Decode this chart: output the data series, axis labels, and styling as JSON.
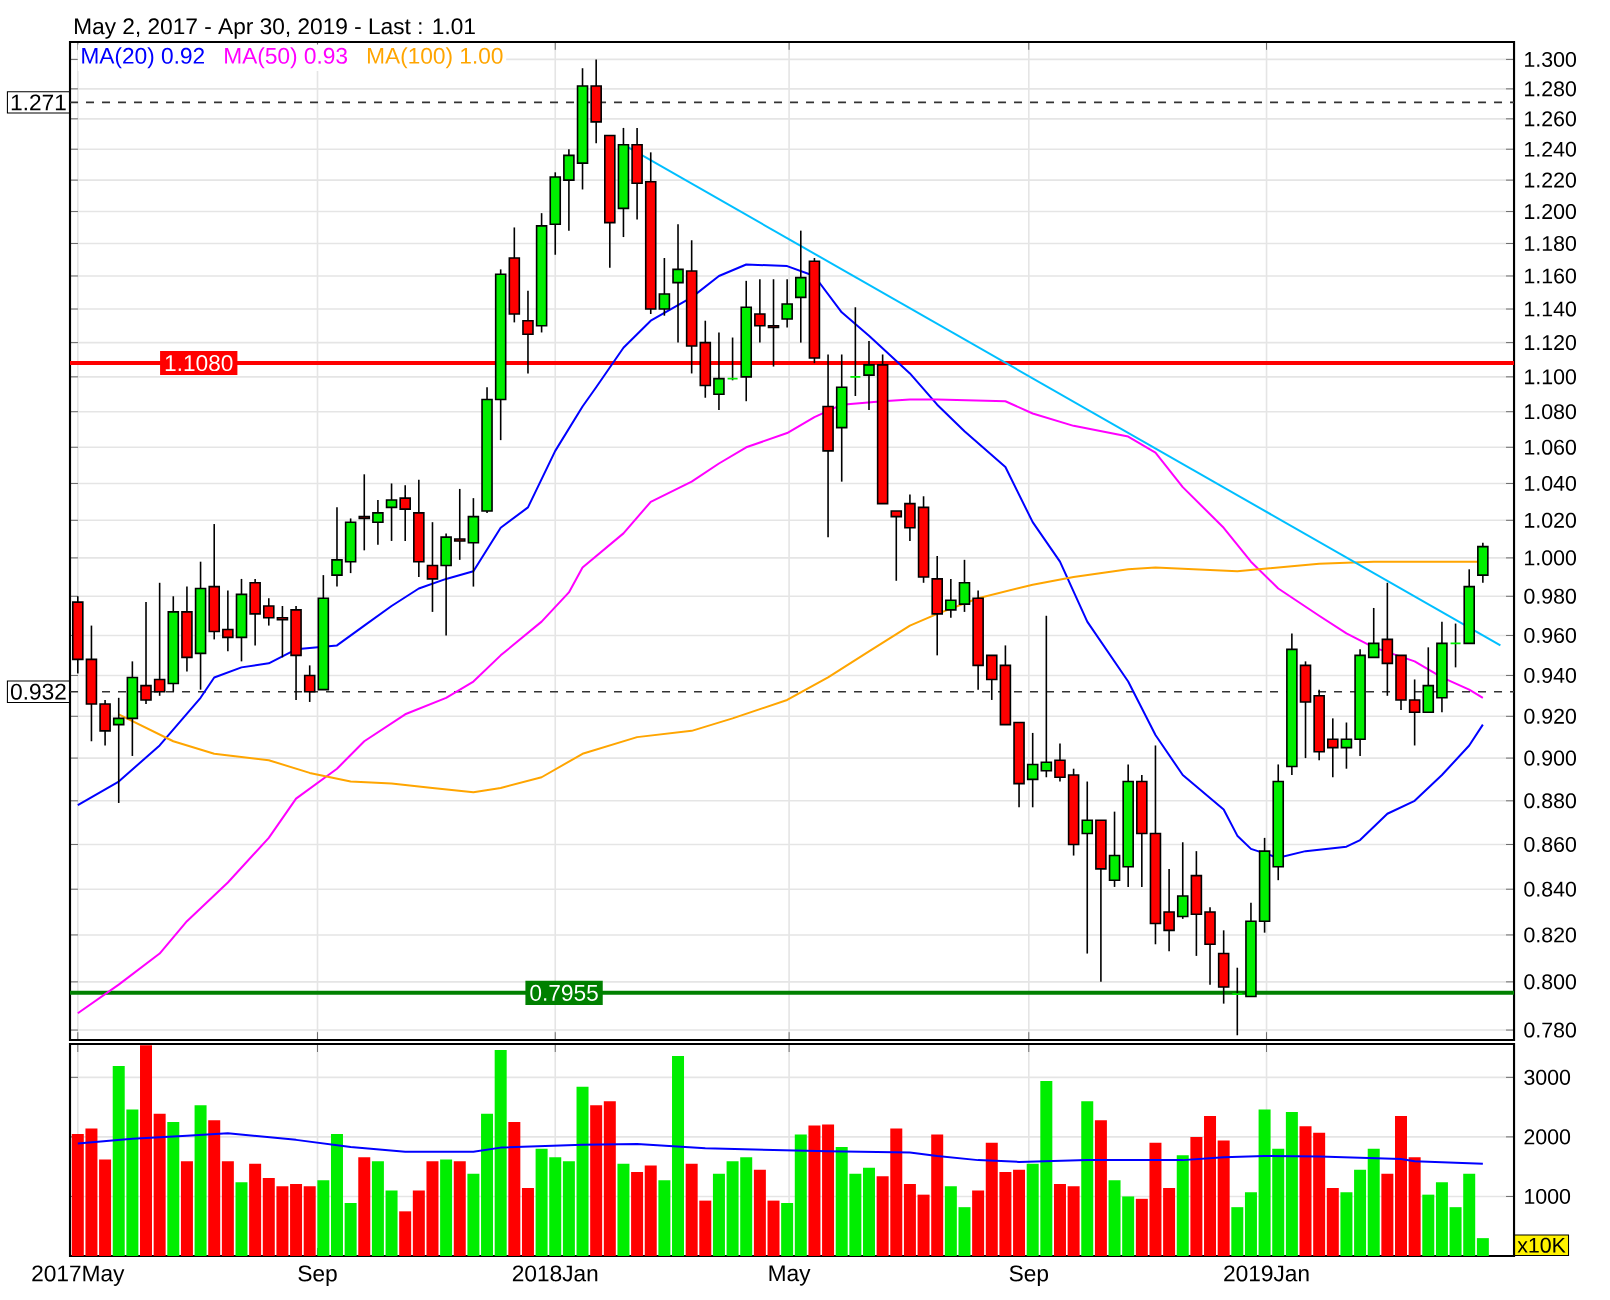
{
  "chart_data": [
    {
      "type": "candlestick",
      "title": "May 2, 2017 - Apr 30, 2019 - Last : 1.01",
      "log": true,
      "grid": true,
      "legend": "top left",
      "tick_labels": "y",
      "xlim": [
        "2017-04-27",
        "2019-05-08"
      ],
      "xticks": [
        {
          "value": "2017-05-01",
          "label": null
        },
        {
          "value": "2017-09-01",
          "label": null
        },
        {
          "value": "2018-01-01",
          "label": null
        },
        {
          "value": "2018-05-01",
          "label": null
        },
        {
          "value": "2018-09-01",
          "label": null
        },
        {
          "value": "2019-01-01",
          "label": null
        }
      ],
      "ylim": [
        0.776,
        1.312
      ],
      "yticks": [
        {
          "value": 0.78,
          "label": "0.780"
        },
        {
          "value": 0.8,
          "label": "0.800"
        },
        {
          "value": 0.82,
          "label": "0.820"
        },
        {
          "value": 0.84,
          "label": "0.840"
        },
        {
          "value": 0.86,
          "label": "0.860"
        },
        {
          "value": 0.88,
          "label": "0.880"
        },
        {
          "value": 0.9,
          "label": "0.900"
        },
        {
          "value": 0.92,
          "label": "0.920"
        },
        {
          "value": 0.94,
          "label": "0.940"
        },
        {
          "value": 0.96,
          "label": "0.960"
        },
        {
          "value": 0.98,
          "label": "0.980"
        },
        {
          "value": 1.0,
          "label": "1.000"
        },
        {
          "value": 1.02,
          "label": "1.020"
        },
        {
          "value": 1.04,
          "label": "1.040"
        },
        {
          "value": 1.06,
          "label": "1.060"
        },
        {
          "value": 1.08,
          "label": "1.080"
        },
        {
          "value": 1.1,
          "label": "1.100"
        },
        {
          "value": 1.12,
          "label": "1.120"
        },
        {
          "value": 1.14,
          "label": "1.140"
        },
        {
          "value": 1.16,
          "label": "1.160"
        },
        {
          "value": 1.18,
          "label": "1.180"
        },
        {
          "value": 1.2,
          "label": "1.200"
        },
        {
          "value": 1.22,
          "label": "1.220"
        },
        {
          "value": 1.24,
          "label": "1.240"
        },
        {
          "value": 1.26,
          "label": "1.260"
        },
        {
          "value": 1.28,
          "label": "1.280"
        },
        {
          "value": 1.3,
          "label": "1.300"
        }
      ],
      "x": [
        "2017-05-01",
        "2017-05-08",
        "2017-05-15",
        "2017-05-22",
        "2017-05-29",
        "2017-06-05",
        "2017-06-12",
        "2017-06-19",
        "2017-06-26",
        "2017-07-03",
        "2017-07-10",
        "2017-07-17",
        "2017-07-24",
        "2017-07-31",
        "2017-08-07",
        "2017-08-14",
        "2017-08-21",
        "2017-08-28",
        "2017-09-04",
        "2017-09-11",
        "2017-09-18",
        "2017-09-25",
        "2017-10-02",
        "2017-10-09",
        "2017-10-16",
        "2017-10-23",
        "2017-10-30",
        "2017-11-06",
        "2017-11-13",
        "2017-11-20",
        "2017-11-27",
        "2017-12-04",
        "2017-12-11",
        "2017-12-18",
        "2017-12-25",
        "2018-01-01",
        "2018-01-08",
        "2018-01-15",
        "2018-01-22",
        "2018-01-29",
        "2018-02-05",
        "2018-02-12",
        "2018-02-19",
        "2018-02-26",
        "2018-03-05",
        "2018-03-12",
        "2018-03-19",
        "2018-03-26",
        "2018-04-02",
        "2018-04-09",
        "2018-04-16",
        "2018-04-23",
        "2018-04-30",
        "2018-05-07",
        "2018-05-14",
        "2018-05-21",
        "2018-05-28",
        "2018-06-04",
        "2018-06-11",
        "2018-06-18",
        "2018-06-25",
        "2018-07-02",
        "2018-07-09",
        "2018-07-16",
        "2018-07-23",
        "2018-07-30",
        "2018-08-06",
        "2018-08-13",
        "2018-08-20",
        "2018-08-27",
        "2018-09-03",
        "2018-09-10",
        "2018-09-17",
        "2018-09-24",
        "2018-10-01",
        "2018-10-08",
        "2018-10-15",
        "2018-10-22",
        "2018-10-29",
        "2018-11-05",
        "2018-11-12",
        "2018-11-19",
        "2018-11-26",
        "2018-12-03",
        "2018-12-10",
        "2018-12-17",
        "2018-12-24",
        "2018-12-31",
        "2019-01-07",
        "2019-01-14",
        "2019-01-21",
        "2019-01-28",
        "2019-02-04",
        "2019-02-11",
        "2019-02-18",
        "2019-02-25",
        "2019-03-04",
        "2019-03-11",
        "2019-03-18",
        "2019-03-25",
        "2019-04-01",
        "2019-04-08",
        "2019-04-15",
        "2019-04-22"
      ],
      "ohlc": [
        [
          0.977,
          0.98,
          0.941,
          0.948
        ],
        [
          0.948,
          0.965,
          0.908,
          0.926
        ],
        [
          0.926,
          0.928,
          0.906,
          0.913
        ],
        [
          0.916,
          0.929,
          0.879,
          0.919
        ],
        [
          0.919,
          0.947,
          0.901,
          0.939
        ],
        [
          0.935,
          0.977,
          0.926,
          0.928
        ],
        [
          0.938,
          0.987,
          0.93,
          0.932
        ],
        [
          0.936,
          0.98,
          0.932,
          0.972
        ],
        [
          0.972,
          0.985,
          0.942,
          0.949
        ],
        [
          0.951,
          0.998,
          0.933,
          0.984
        ],
        [
          0.985,
          1.018,
          0.958,
          0.962
        ],
        [
          0.963,
          0.983,
          0.952,
          0.959
        ],
        [
          0.959,
          0.989,
          0.947,
          0.981
        ],
        [
          0.987,
          0.989,
          0.955,
          0.971
        ],
        [
          0.975,
          0.979,
          0.965,
          0.969
        ],
        [
          0.969,
          0.975,
          0.949,
          0.968
        ],
        [
          0.973,
          0.975,
          0.928,
          0.95
        ],
        [
          0.94,
          0.945,
          0.927,
          0.932
        ],
        [
          0.933,
          0.991,
          0.933,
          0.979
        ],
        [
          0.991,
          1.027,
          0.985,
          0.999
        ],
        [
          0.998,
          1.021,
          0.992,
          1.019
        ],
        [
          1.022,
          1.045,
          1.004,
          1.021
        ],
        [
          1.019,
          1.031,
          1.007,
          1.024
        ],
        [
          1.027,
          1.04,
          1.009,
          1.031
        ],
        [
          1.032,
          1.039,
          1.009,
          1.026
        ],
        [
          1.024,
          1.042,
          0.99,
          0.998
        ],
        [
          0.996,
          1.019,
          0.972,
          0.989
        ],
        [
          0.996,
          1.013,
          0.96,
          1.011
        ],
        [
          1.01,
          1.037,
          0.999,
          1.009
        ],
        [
          1.008,
          1.032,
          0.985,
          1.022
        ],
        [
          1.025,
          1.094,
          1.024,
          1.087
        ],
        [
          1.087,
          1.164,
          1.064,
          1.161
        ],
        [
          1.171,
          1.19,
          1.132,
          1.137
        ],
        [
          1.133,
          1.151,
          1.102,
          1.125
        ],
        [
          1.13,
          1.199,
          1.126,
          1.191
        ],
        [
          1.192,
          1.225,
          1.173,
          1.222
        ],
        [
          1.22,
          1.24,
          1.188,
          1.236
        ],
        [
          1.231,
          1.294,
          1.214,
          1.282
        ],
        [
          1.282,
          1.3,
          1.244,
          1.258
        ],
        [
          1.249,
          1.249,
          1.165,
          1.193
        ],
        [
          1.202,
          1.254,
          1.184,
          1.243
        ],
        [
          1.243,
          1.254,
          1.195,
          1.218
        ],
        [
          1.219,
          1.238,
          1.137,
          1.14
        ],
        [
          1.14,
          1.171,
          1.136,
          1.149
        ],
        [
          1.156,
          1.192,
          1.12,
          1.164
        ],
        [
          1.163,
          1.182,
          1.102,
          1.118
        ],
        [
          1.12,
          1.133,
          1.088,
          1.095
        ],
        [
          1.09,
          1.126,
          1.081,
          1.099
        ],
        [
          1.099,
          1.123,
          1.098,
          1.099
        ],
        [
          1.1,
          1.157,
          1.086,
          1.141
        ],
        [
          1.137,
          1.158,
          1.12,
          1.13
        ],
        [
          1.13,
          1.158,
          1.106,
          1.129
        ],
        [
          1.134,
          1.158,
          1.129,
          1.143
        ],
        [
          1.147,
          1.188,
          1.12,
          1.159
        ],
        [
          1.169,
          1.171,
          1.108,
          1.111
        ],
        [
          1.083,
          1.113,
          1.011,
          1.058
        ],
        [
          1.071,
          1.113,
          1.041,
          1.094
        ],
        [
          1.1,
          1.141,
          1.089,
          1.1
        ],
        [
          1.101,
          1.121,
          1.081,
          1.107
        ],
        [
          1.107,
          1.113,
          1.029,
          1.029
        ],
        [
          1.025,
          1.025,
          0.988,
          1.022
        ],
        [
          1.029,
          1.034,
          1.009,
          1.016
        ],
        [
          1.027,
          1.033,
          0.987,
          0.99
        ],
        [
          0.989,
          1.001,
          0.95,
          0.971
        ],
        [
          0.973,
          0.989,
          0.969,
          0.978
        ],
        [
          0.976,
          0.999,
          0.972,
          0.987
        ],
        [
          0.979,
          0.983,
          0.933,
          0.945
        ],
        [
          0.95,
          0.95,
          0.928,
          0.938
        ],
        [
          0.945,
          0.955,
          0.916,
          0.916
        ],
        [
          0.917,
          0.917,
          0.877,
          0.888
        ],
        [
          0.89,
          0.912,
          0.877,
          0.897
        ],
        [
          0.894,
          0.97,
          0.891,
          0.898
        ],
        [
          0.899,
          0.907,
          0.889,
          0.891
        ],
        [
          0.892,
          0.895,
          0.855,
          0.86
        ],
        [
          0.865,
          0.889,
          0.812,
          0.871
        ],
        [
          0.871,
          0.871,
          0.8,
          0.849
        ],
        [
          0.844,
          0.875,
          0.841,
          0.855
        ],
        [
          0.85,
          0.897,
          0.841,
          0.889
        ],
        [
          0.889,
          0.892,
          0.841,
          0.865
        ],
        [
          0.865,
          0.906,
          0.816,
          0.825
        ],
        [
          0.83,
          0.849,
          0.813,
          0.822
        ],
        [
          0.828,
          0.861,
          0.827,
          0.837
        ],
        [
          0.846,
          0.857,
          0.811,
          0.829
        ],
        [
          0.83,
          0.832,
          0.799,
          0.816
        ],
        [
          0.812,
          0.822,
          0.791,
          0.798
        ],
        [
          0.795,
          0.806,
          0.778,
          0.795
        ],
        [
          0.794,
          0.834,
          0.794,
          0.826
        ],
        [
          0.826,
          0.863,
          0.821,
          0.857
        ],
        [
          0.85,
          0.897,
          0.844,
          0.889
        ],
        [
          0.896,
          0.961,
          0.892,
          0.953
        ],
        [
          0.945,
          0.947,
          0.9,
          0.927
        ],
        [
          0.93,
          0.933,
          0.899,
          0.903
        ],
        [
          0.909,
          0.919,
          0.891,
          0.905
        ],
        [
          0.905,
          0.917,
          0.895,
          0.909
        ],
        [
          0.909,
          0.953,
          0.901,
          0.95
        ],
        [
          0.949,
          0.974,
          0.949,
          0.956
        ],
        [
          0.958,
          0.987,
          0.93,
          0.946
        ],
        [
          0.95,
          0.95,
          0.923,
          0.928
        ],
        [
          0.928,
          0.938,
          0.906,
          0.922
        ],
        [
          0.922,
          0.954,
          0.922,
          0.935
        ],
        [
          0.929,
          0.967,
          0.922,
          0.956
        ],
        [
          0.956,
          0.966,
          0.944,
          0.956
        ],
        [
          0.956,
          0.994,
          0.956,
          0.985
        ],
        [
          0.991,
          1.008,
          0.987,
          1.006
        ]
      ],
      "colors": [
        "#ff0000",
        "#ff0000",
        "#ff0000",
        "#00ee00",
        "#00ee00",
        "#ff0000",
        "#ff0000",
        "#00ee00",
        "#ff0000",
        "#00ee00",
        "#ff0000",
        "#ff0000",
        "#00ee00",
        "#ff0000",
        "#ff0000",
        "#ff0000",
        "#ff0000",
        "#ff0000",
        "#00ee00",
        "#00ee00",
        "#00ee00",
        "#ff0000",
        "#00ee00",
        "#00ee00",
        "#ff0000",
        "#ff0000",
        "#ff0000",
        "#00ee00",
        "#ff0000",
        "#00ee00",
        "#00ee00",
        "#00ee00",
        "#ff0000",
        "#ff0000",
        "#00ee00",
        "#00ee00",
        "#00ee00",
        "#00ee00",
        "#ff0000",
        "#ff0000",
        "#00ee00",
        "#ff0000",
        "#ff0000",
        "#00ee00",
        "#00ee00",
        "#ff0000",
        "#ff0000",
        "#00ee00",
        "#00ee00",
        "#00ee00",
        "#ff0000",
        "#ff0000",
        "#00ee00",
        "#00ee00",
        "#ff0000",
        "#ff0000",
        "#00ee00",
        "#00ee00",
        "#00ee00",
        "#ff0000",
        "#ff0000",
        "#ff0000",
        "#ff0000",
        "#ff0000",
        "#00ee00",
        "#00ee00",
        "#ff0000",
        "#ff0000",
        "#ff0000",
        "#ff0000",
        "#00ee00",
        "#00ee00",
        "#ff0000",
        "#ff0000",
        "#00ee00",
        "#ff0000",
        "#00ee00",
        "#00ee00",
        "#ff0000",
        "#ff0000",
        "#ff0000",
        "#00ee00",
        "#ff0000",
        "#ff0000",
        "#ff0000",
        "#00ee00",
        "#00ee00",
        "#00ee00",
        "#00ee00",
        "#00ee00",
        "#ff0000",
        "#ff0000",
        "#ff0000",
        "#00ee00",
        "#00ee00",
        "#00ee00",
        "#ff0000",
        "#ff0000",
        "#ff0000",
        "#00ee00",
        "#00ee00",
        "#00ee00",
        "#00ee00",
        "#00ee00"
      ],
      "series": [
        {
          "type": "line",
          "name": "MA(20)  0.92",
          "color": "#0000ff",
          "x": [
            "2017-05-01",
            "2017-05-22",
            "2017-06-12",
            "2017-07-03",
            "2017-07-10",
            "2017-07-24",
            "2017-08-07",
            "2017-08-21",
            "2017-09-11",
            "2017-09-25",
            "2017-10-09",
            "2017-10-23",
            "2017-11-06",
            "2017-11-20",
            "2017-12-04",
            "2017-12-18",
            "2018-01-01",
            "2018-01-15",
            "2018-01-22",
            "2018-02-05",
            "2018-02-19",
            "2018-03-12",
            "2018-03-26",
            "2018-04-09",
            "2018-04-30",
            "2018-05-14",
            "2018-05-28",
            "2018-06-11",
            "2018-07-02",
            "2018-07-16",
            "2018-07-30",
            "2018-08-20",
            "2018-09-03",
            "2018-09-17",
            "2018-10-01",
            "2018-10-22",
            "2018-11-05",
            "2018-11-19",
            "2018-12-10",
            "2018-12-17",
            "2018-12-24",
            "2019-01-07",
            "2019-01-21",
            "2019-02-11",
            "2019-02-18",
            "2019-03-04",
            "2019-03-18",
            "2019-04-01",
            "2019-04-15",
            "2019-04-22"
          ],
          "values": [
            0.878,
            0.889,
            0.906,
            0.929,
            0.939,
            0.944,
            0.946,
            0.953,
            0.955,
            0.965,
            0.975,
            0.984,
            0.989,
            0.993,
            1.016,
            1.027,
            1.058,
            1.083,
            1.094,
            1.117,
            1.133,
            1.147,
            1.16,
            1.167,
            1.166,
            1.16,
            1.138,
            1.124,
            1.102,
            1.084,
            1.069,
            1.049,
            1.019,
            0.998,
            0.967,
            0.937,
            0.911,
            0.892,
            0.876,
            0.864,
            0.858,
            0.854,
            0.857,
            0.859,
            0.862,
            0.874,
            0.88,
            0.892,
            0.906,
            0.916
          ]
        },
        {
          "type": "line",
          "name": "MA(50)  0.93",
          "color": "#ff00ff",
          "x": [
            "2017-05-01",
            "2017-05-22",
            "2017-06-12",
            "2017-06-26",
            "2017-07-17",
            "2017-08-07",
            "2017-08-21",
            "2017-09-11",
            "2017-09-25",
            "2017-10-16",
            "2017-11-06",
            "2017-11-20",
            "2017-12-04",
            "2017-12-25",
            "2018-01-08",
            "2018-01-15",
            "2018-02-05",
            "2018-02-19",
            "2018-03-12",
            "2018-03-26",
            "2018-04-09",
            "2018-04-30",
            "2018-05-14",
            "2018-05-28",
            "2018-06-18",
            "2018-07-02",
            "2018-07-16",
            "2018-08-20",
            "2018-09-03",
            "2018-09-24",
            "2018-10-22",
            "2018-11-05",
            "2018-11-19",
            "2018-12-10",
            "2018-12-24",
            "2019-01-07",
            "2019-01-28",
            "2019-02-11",
            "2019-02-25",
            "2019-03-18",
            "2019-04-01",
            "2019-04-15",
            "2019-04-22"
          ],
          "values": [
            0.787,
            0.799,
            0.812,
            0.826,
            0.843,
            0.863,
            0.881,
            0.895,
            0.908,
            0.921,
            0.929,
            0.937,
            0.95,
            0.967,
            0.982,
            0.995,
            1.013,
            1.03,
            1.041,
            1.051,
            1.06,
            1.068,
            1.077,
            1.084,
            1.086,
            1.087,
            1.087,
            1.086,
            1.079,
            1.072,
            1.066,
            1.057,
            1.038,
            1.016,
            0.998,
            0.984,
            0.97,
            0.961,
            0.954,
            0.947,
            0.939,
            0.933,
            0.929
          ]
        },
        {
          "type": "line",
          "name": "MA(100)  1.00",
          "color": "#ffa500",
          "x": [
            "2017-05-22",
            "2017-06-19",
            "2017-07-10",
            "2017-08-07",
            "2017-08-28",
            "2017-09-18",
            "2017-10-09",
            "2017-10-30",
            "2017-11-20",
            "2017-12-04",
            "2017-12-25",
            "2018-01-15",
            "2018-02-12",
            "2018-03-12",
            "2018-04-02",
            "2018-04-30",
            "2018-05-21",
            "2018-06-11",
            "2018-07-02",
            "2018-07-16",
            "2018-08-06",
            "2018-09-03",
            "2018-09-24",
            "2018-10-22",
            "2018-11-05",
            "2018-12-17",
            "2019-01-28",
            "2019-02-25",
            "2019-04-22"
          ],
          "values": [
            0.921,
            0.908,
            0.902,
            0.899,
            0.893,
            0.889,
            0.888,
            0.886,
            0.884,
            0.886,
            0.891,
            0.902,
            0.91,
            0.913,
            0.919,
            0.928,
            0.939,
            0.952,
            0.965,
            0.971,
            0.979,
            0.986,
            0.99,
            0.994,
            0.995,
            0.993,
            0.997,
            0.998,
            0.998
          ]
        },
        {
          "type": "line",
          "color": "#00bfff",
          "x": [
            "2018-02-05",
            "2019-05-01"
          ],
          "values": [
            1.243,
            0.955
          ]
        }
      ],
      "ref_lines": [
        {
          "axis": "y",
          "value": 1.271,
          "label": "1.271",
          "color": "#333333",
          "line_style": "dashed"
        },
        {
          "axis": "y",
          "value": 1.108,
          "label": "1.1080",
          "color": "#ff0000",
          "line_style": "solid"
        },
        {
          "axis": "y",
          "value": 0.932,
          "label": "0.932",
          "color": "#333333",
          "line_style": "dashed"
        },
        {
          "axis": "y",
          "value": 0.7955,
          "label": "0.7955",
          "color": "#008000",
          "line_style": "solid"
        }
      ]
    },
    {
      "type": "bar",
      "grid": true,
      "annotations": [
        "x10K"
      ],
      "xlim": [
        "2017-04-27",
        "2019-05-08"
      ],
      "xticks": [
        {
          "value": "2017-05-01",
          "label": "2017May"
        },
        {
          "value": "2017-09-01",
          "label": "Sep"
        },
        {
          "value": "2018-01-01",
          "label": "2018Jan"
        },
        {
          "value": "2018-05-01",
          "label": "May"
        },
        {
          "value": "2018-09-01",
          "label": "Sep"
        },
        {
          "value": "2019-01-01",
          "label": "2019Jan"
        }
      ],
      "ylim": [
        0,
        3560
      ],
      "yticks": [
        1000,
        2000,
        3000
      ],
      "x": [
        "2017-05-01",
        "2017-05-08",
        "2017-05-15",
        "2017-05-22",
        "2017-05-29",
        "2017-06-05",
        "2017-06-12",
        "2017-06-19",
        "2017-06-26",
        "2017-07-03",
        "2017-07-10",
        "2017-07-17",
        "2017-07-24",
        "2017-07-31",
        "2017-08-07",
        "2017-08-14",
        "2017-08-21",
        "2017-08-28",
        "2017-09-04",
        "2017-09-11",
        "2017-09-18",
        "2017-09-25",
        "2017-10-02",
        "2017-10-09",
        "2017-10-16",
        "2017-10-23",
        "2017-10-30",
        "2017-11-06",
        "2017-11-13",
        "2017-11-20",
        "2017-11-27",
        "2017-12-04",
        "2017-12-11",
        "2017-12-18",
        "2017-12-25",
        "2018-01-01",
        "2018-01-08",
        "2018-01-15",
        "2018-01-22",
        "2018-01-29",
        "2018-02-05",
        "2018-02-12",
        "2018-02-19",
        "2018-02-26",
        "2018-03-05",
        "2018-03-12",
        "2018-03-19",
        "2018-03-26",
        "2018-04-02",
        "2018-04-09",
        "2018-04-16",
        "2018-04-23",
        "2018-04-30",
        "2018-05-07",
        "2018-05-14",
        "2018-05-21",
        "2018-05-28",
        "2018-06-04",
        "2018-06-11",
        "2018-06-18",
        "2018-06-25",
        "2018-07-02",
        "2018-07-09",
        "2018-07-16",
        "2018-07-23",
        "2018-07-30",
        "2018-08-06",
        "2018-08-13",
        "2018-08-20",
        "2018-08-27",
        "2018-09-03",
        "2018-09-10",
        "2018-09-17",
        "2018-09-24",
        "2018-10-01",
        "2018-10-08",
        "2018-10-15",
        "2018-10-22",
        "2018-10-29",
        "2018-11-05",
        "2018-11-12",
        "2018-11-19",
        "2018-11-26",
        "2018-12-03",
        "2018-12-10",
        "2018-12-17",
        "2018-12-24",
        "2018-12-31",
        "2019-01-07",
        "2019-01-14",
        "2019-01-21",
        "2019-01-28",
        "2019-02-04",
        "2019-02-11",
        "2019-02-18",
        "2019-02-25",
        "2019-03-04",
        "2019-03-11",
        "2019-03-18",
        "2019-03-25",
        "2019-04-01",
        "2019-04-08",
        "2019-04-15",
        "2019-04-22"
      ],
      "series": [
        {
          "type": "bar",
          "values": [
            2050,
            2140,
            1620,
            3190,
            2460,
            3540,
            2390,
            2250,
            1590,
            2530,
            2280,
            1590,
            1240,
            1550,
            1310,
            1170,
            1210,
            1170,
            1270,
            2050,
            890,
            1660,
            1590,
            1100,
            750,
            1100,
            1590,
            1620,
            1590,
            1380,
            2390,
            3460,
            2250,
            1140,
            1800,
            1660,
            1590,
            2840,
            2530,
            2600,
            1550,
            1410,
            1520,
            1270,
            3360,
            1550,
            930,
            1380,
            1590,
            1660,
            1450,
            930,
            890,
            2040,
            2190,
            2210,
            1830,
            1380,
            1480,
            1340,
            2140,
            1210,
            1030,
            2040,
            1170,
            820,
            1100,
            1900,
            1410,
            1450,
            1550,
            2940,
            1210,
            1170,
            2600,
            2280,
            1270,
            1000,
            960,
            1900,
            1140,
            1690,
            2000,
            2350,
            1940,
            820,
            1070,
            2460,
            1800,
            2420,
            2180,
            2070,
            1140,
            1070,
            1450,
            1800,
            1380,
            2350,
            1660,
            1030,
            1240,
            820,
            1380,
            300
          ],
          "colors": [
            "#ff0000",
            "#ff0000",
            "#ff0000",
            "#00ee00",
            "#00ee00",
            "#ff0000",
            "#ff0000",
            "#00ee00",
            "#ff0000",
            "#00ee00",
            "#ff0000",
            "#ff0000",
            "#00ee00",
            "#ff0000",
            "#ff0000",
            "#ff0000",
            "#ff0000",
            "#ff0000",
            "#00ee00",
            "#00ee00",
            "#00ee00",
            "#ff0000",
            "#00ee00",
            "#00ee00",
            "#ff0000",
            "#ff0000",
            "#ff0000",
            "#00ee00",
            "#ff0000",
            "#00ee00",
            "#00ee00",
            "#00ee00",
            "#ff0000",
            "#ff0000",
            "#00ee00",
            "#00ee00",
            "#00ee00",
            "#00ee00",
            "#ff0000",
            "#ff0000",
            "#00ee00",
            "#ff0000",
            "#ff0000",
            "#00ee00",
            "#00ee00",
            "#ff0000",
            "#ff0000",
            "#00ee00",
            "#00ee00",
            "#00ee00",
            "#ff0000",
            "#ff0000",
            "#00ee00",
            "#00ee00",
            "#ff0000",
            "#ff0000",
            "#00ee00",
            "#00ee00",
            "#00ee00",
            "#ff0000",
            "#ff0000",
            "#ff0000",
            "#ff0000",
            "#ff0000",
            "#00ee00",
            "#00ee00",
            "#ff0000",
            "#ff0000",
            "#ff0000",
            "#ff0000",
            "#00ee00",
            "#00ee00",
            "#ff0000",
            "#ff0000",
            "#00ee00",
            "#ff0000",
            "#00ee00",
            "#00ee00",
            "#ff0000",
            "#ff0000",
            "#ff0000",
            "#00ee00",
            "#ff0000",
            "#ff0000",
            "#ff0000",
            "#00ee00",
            "#00ee00",
            "#00ee00",
            "#00ee00",
            "#00ee00",
            "#ff0000",
            "#ff0000",
            "#ff0000",
            "#00ee00",
            "#00ee00",
            "#00ee00",
            "#ff0000",
            "#ff0000",
            "#ff0000",
            "#00ee00",
            "#00ee00",
            "#00ee00",
            "#00ee00",
            "#00ee00"
          ]
        },
        {
          "type": "line",
          "color": "#0000ff",
          "x": [
            "2017-05-01",
            "2017-05-29",
            "2017-06-26",
            "2017-07-17",
            "2017-08-21",
            "2017-09-18",
            "2017-10-16",
            "2017-11-20",
            "2017-12-04",
            "2018-01-15",
            "2018-02-12",
            "2018-03-19",
            "2018-04-23",
            "2018-05-21",
            "2018-07-02",
            "2018-07-16",
            "2018-08-06",
            "2018-08-27",
            "2018-10-01",
            "2018-11-19",
            "2018-12-10",
            "2018-12-31",
            "2019-01-28",
            "2019-03-11",
            "2019-03-18",
            "2019-04-22"
          ],
          "values": [
            1890,
            1970,
            2020,
            2060,
            1950,
            1830,
            1750,
            1750,
            1820,
            1870,
            1880,
            1810,
            1780,
            1760,
            1740,
            1680,
            1610,
            1580,
            1610,
            1610,
            1660,
            1680,
            1670,
            1630,
            1590,
            1550
          ]
        }
      ]
    }
  ]
}
